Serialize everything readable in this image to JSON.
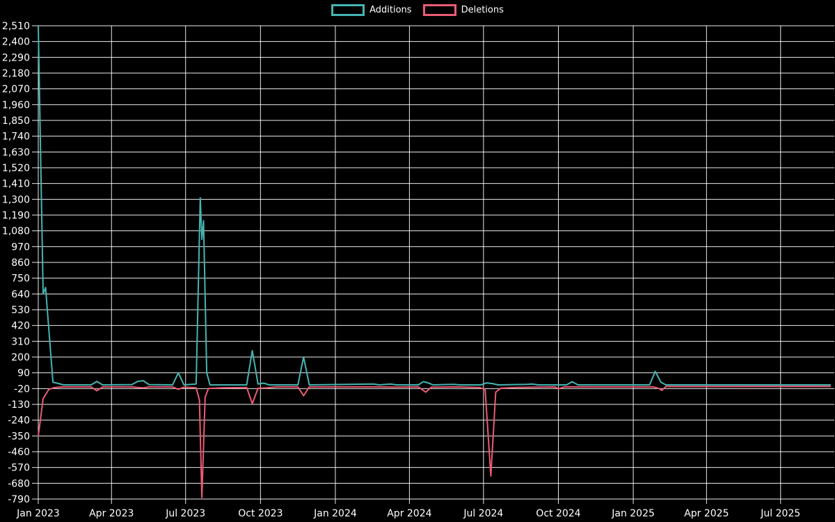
{
  "legend": {
    "items": [
      {
        "label": "Additions"
      },
      {
        "label": "Deletions"
      }
    ]
  },
  "chart_data": {
    "type": "line",
    "title": "",
    "xlabel": "",
    "ylabel": "",
    "background": "#000000",
    "grid": true,
    "grid_color": "#ffffff",
    "text_color": "#ffffff",
    "legend_position": "top-center",
    "ylim": [
      -790,
      2510
    ],
    "xlim": [
      "2023-01-01",
      "2025-09-05"
    ],
    "y_ticks": [
      {
        "value": 2510,
        "label": "2,510"
      },
      {
        "value": 2400,
        "label": "2,400"
      },
      {
        "value": 2290,
        "label": "2,290"
      },
      {
        "value": 2180,
        "label": "2,180"
      },
      {
        "value": 2070,
        "label": "2,070"
      },
      {
        "value": 1960,
        "label": "1,960"
      },
      {
        "value": 1850,
        "label": "1,850"
      },
      {
        "value": 1740,
        "label": "1,740"
      },
      {
        "value": 1630,
        "label": "1,630"
      },
      {
        "value": 1520,
        "label": "1,520"
      },
      {
        "value": 1410,
        "label": "1,410"
      },
      {
        "value": 1300,
        "label": "1,300"
      },
      {
        "value": 1190,
        "label": "1,190"
      },
      {
        "value": 1080,
        "label": "1,080"
      },
      {
        "value": 970,
        "label": "970"
      },
      {
        "value": 860,
        "label": "860"
      },
      {
        "value": 750,
        "label": "750"
      },
      {
        "value": 640,
        "label": "640"
      },
      {
        "value": 530,
        "label": "530"
      },
      {
        "value": 420,
        "label": "420"
      },
      {
        "value": 310,
        "label": "310"
      },
      {
        "value": 200,
        "label": "200"
      },
      {
        "value": 90,
        "label": "90"
      },
      {
        "value": -20,
        "label": "-20"
      },
      {
        "value": -130,
        "label": "-130"
      },
      {
        "value": -240,
        "label": "-240"
      },
      {
        "value": -350,
        "label": "-350"
      },
      {
        "value": -460,
        "label": "-460"
      },
      {
        "value": -570,
        "label": "-570"
      },
      {
        "value": -680,
        "label": "-680"
      },
      {
        "value": -790,
        "label": "-790"
      }
    ],
    "x_ticks": [
      {
        "date": "2023-01-01",
        "label": "Jan 2023"
      },
      {
        "date": "2023-04-01",
        "label": "Apr 2023"
      },
      {
        "date": "2023-07-01",
        "label": "Jul 2023"
      },
      {
        "date": "2023-10-01",
        "label": "Oct 2023"
      },
      {
        "date": "2024-01-01",
        "label": "Jan 2024"
      },
      {
        "date": "2024-04-01",
        "label": "Apr 2024"
      },
      {
        "date": "2024-07-01",
        "label": "Jul 2024"
      },
      {
        "date": "2024-10-01",
        "label": "Oct 2024"
      },
      {
        "date": "2025-01-01",
        "label": "Jan 2025"
      },
      {
        "date": "2025-04-01",
        "label": "Apr 2025"
      },
      {
        "date": "2025-07-01",
        "label": "Jul 2025"
      }
    ],
    "series": [
      {
        "name": "Additions",
        "color": "#45b5b2",
        "points": [
          [
            "2023-01-01",
            2510
          ],
          [
            "2023-01-07",
            640
          ],
          [
            "2023-01-10",
            685
          ],
          [
            "2023-01-19",
            25
          ],
          [
            "2023-01-24",
            18
          ],
          [
            "2023-02-01",
            6
          ],
          [
            "2023-03-07",
            6
          ],
          [
            "2023-03-14",
            30
          ],
          [
            "2023-03-21",
            6
          ],
          [
            "2023-04-26",
            8
          ],
          [
            "2023-05-03",
            30
          ],
          [
            "2023-05-10",
            35
          ],
          [
            "2023-05-17",
            8
          ],
          [
            "2023-06-15",
            6
          ],
          [
            "2023-06-22",
            90
          ],
          [
            "2023-06-29",
            6
          ],
          [
            "2023-07-14",
            12
          ],
          [
            "2023-07-19",
            1310
          ],
          [
            "2023-07-21",
            1020
          ],
          [
            "2023-07-23",
            1150
          ],
          [
            "2023-07-27",
            90
          ],
          [
            "2023-07-31",
            6
          ],
          [
            "2023-09-14",
            6
          ],
          [
            "2023-09-21",
            245
          ],
          [
            "2023-09-28",
            12
          ],
          [
            "2023-10-05",
            18
          ],
          [
            "2023-10-12",
            6
          ],
          [
            "2023-11-16",
            6
          ],
          [
            "2023-11-23",
            200
          ],
          [
            "2023-11-30",
            6
          ],
          [
            "2024-02-17",
            12
          ],
          [
            "2024-02-24",
            6
          ],
          [
            "2024-03-09",
            12
          ],
          [
            "2024-03-16",
            6
          ],
          [
            "2024-04-12",
            6
          ],
          [
            "2024-04-18",
            28
          ],
          [
            "2024-04-24",
            20
          ],
          [
            "2024-04-30",
            6
          ],
          [
            "2024-05-26",
            10
          ],
          [
            "2024-06-02",
            6
          ],
          [
            "2024-06-28",
            6
          ],
          [
            "2024-07-05",
            20
          ],
          [
            "2024-07-12",
            15
          ],
          [
            "2024-07-19",
            6
          ],
          [
            "2024-08-23",
            10
          ],
          [
            "2024-08-30",
            12
          ],
          [
            "2024-09-06",
            6
          ],
          [
            "2024-10-11",
            6
          ],
          [
            "2024-10-18",
            28
          ],
          [
            "2024-10-25",
            6
          ],
          [
            "2025-01-21",
            6
          ],
          [
            "2025-01-28",
            100
          ],
          [
            "2025-02-04",
            25
          ],
          [
            "2025-02-10",
            6
          ],
          [
            "2025-08-31",
            6
          ]
        ]
      },
      {
        "name": "Deletions",
        "color": "#ec5b75",
        "points": [
          [
            "2023-01-01",
            -350
          ],
          [
            "2023-01-07",
            -90
          ],
          [
            "2023-01-14",
            -25
          ],
          [
            "2023-01-21",
            -12
          ],
          [
            "2023-02-01",
            -8
          ],
          [
            "2023-03-07",
            -8
          ],
          [
            "2023-03-14",
            -35
          ],
          [
            "2023-03-21",
            -8
          ],
          [
            "2023-04-26",
            -8
          ],
          [
            "2023-05-03",
            -12
          ],
          [
            "2023-05-10",
            -15
          ],
          [
            "2023-05-17",
            -8
          ],
          [
            "2023-06-15",
            -8
          ],
          [
            "2023-06-22",
            -25
          ],
          [
            "2023-06-29",
            -10
          ],
          [
            "2023-07-14",
            -15
          ],
          [
            "2023-07-18",
            -100
          ],
          [
            "2023-07-21",
            -780
          ],
          [
            "2023-07-25",
            -80
          ],
          [
            "2023-07-29",
            -20
          ],
          [
            "2023-08-15",
            -15
          ],
          [
            "2023-09-14",
            -12
          ],
          [
            "2023-09-21",
            -125
          ],
          [
            "2023-09-28",
            -18
          ],
          [
            "2023-10-10",
            -15
          ],
          [
            "2023-10-20",
            -8
          ],
          [
            "2023-11-16",
            -8
          ],
          [
            "2023-11-23",
            -70
          ],
          [
            "2023-11-30",
            -8
          ],
          [
            "2024-02-21",
            -8
          ],
          [
            "2024-03-13",
            -10
          ],
          [
            "2024-04-12",
            -8
          ],
          [
            "2024-04-21",
            -45
          ],
          [
            "2024-04-28",
            -10
          ],
          [
            "2024-05-29",
            -8
          ],
          [
            "2024-06-26",
            -12
          ],
          [
            "2024-07-03",
            -25
          ],
          [
            "2024-07-10",
            -630
          ],
          [
            "2024-07-16",
            -45
          ],
          [
            "2024-07-22",
            -18
          ],
          [
            "2024-08-10",
            -12
          ],
          [
            "2024-09-27",
            -8
          ],
          [
            "2024-10-01",
            -22
          ],
          [
            "2024-10-08",
            -8
          ],
          [
            "2025-01-26",
            -8
          ],
          [
            "2025-02-02",
            -20
          ],
          [
            "2025-02-05",
            -33
          ],
          [
            "2025-02-10",
            -6
          ],
          [
            "2025-08-31",
            -5
          ]
        ]
      }
    ]
  }
}
